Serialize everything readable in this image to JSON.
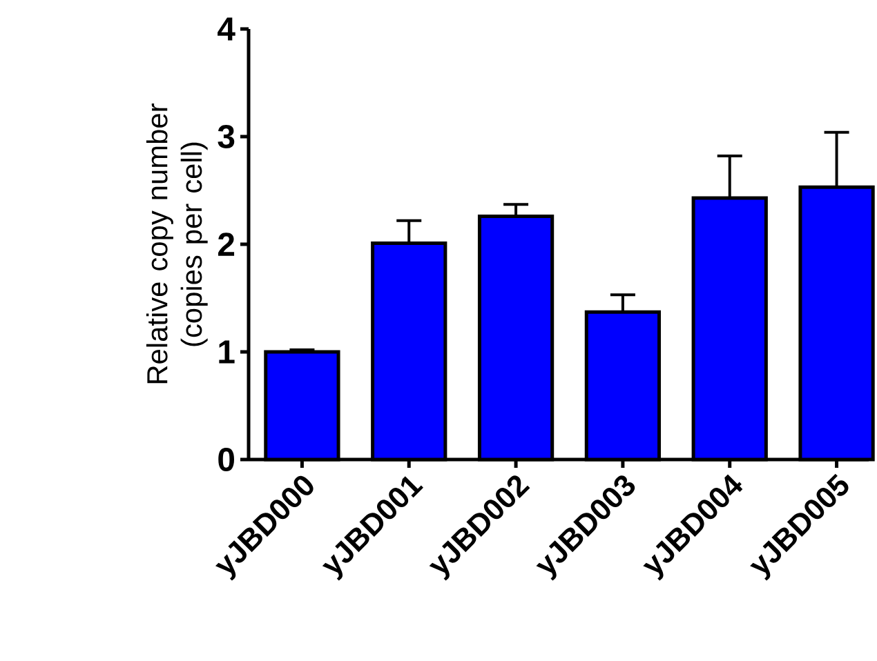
{
  "chart_data": {
    "type": "bar",
    "ylabel": "Relative copy number (copies per cell)",
    "categories": [
      "yJBD000",
      "yJBD001",
      "yJBD002",
      "yJBD003",
      "yJBD004",
      "yJBD005"
    ],
    "values": [
      1.0,
      2.01,
      2.26,
      1.37,
      2.43,
      2.53
    ],
    "errors": [
      [
        1.0,
        1.02
      ],
      [
        2.01,
        2.22
      ],
      [
        2.26,
        2.37
      ],
      [
        1.37,
        1.53
      ],
      [
        2.43,
        2.82
      ],
      [
        2.53,
        3.04
      ]
    ],
    "color": "#0000ff",
    "ylim": [
      0,
      4
    ],
    "yticks": [
      0,
      1,
      2,
      3,
      4
    ]
  }
}
